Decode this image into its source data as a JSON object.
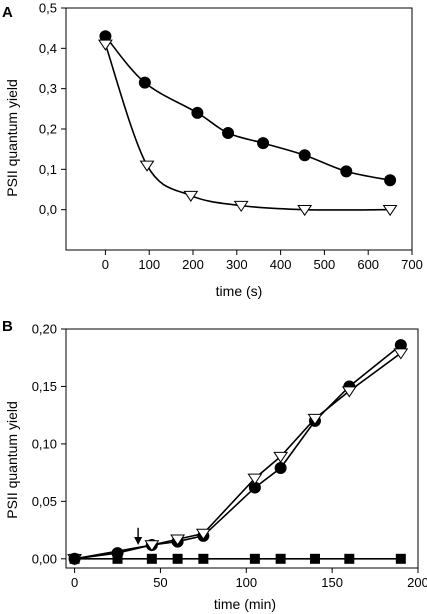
{
  "chart_data": [
    {
      "panel_label": "A",
      "type": "line",
      "xlabel": "time (s)",
      "ylabel": "PSII quantum yield",
      "xlim": [
        -90,
        700
      ],
      "ylim": [
        -0.1,
        0.5
      ],
      "xticks": [
        0,
        100,
        200,
        300,
        400,
        500,
        600,
        700
      ],
      "xtick_labels": [
        "0",
        "100",
        "200",
        "300",
        "400",
        "500",
        "600",
        "700"
      ],
      "yticks": [
        0.0,
        0.1,
        0.2,
        0.3,
        0.4,
        0.5
      ],
      "ytick_labels": [
        "0,0",
        "0,1",
        "0,2",
        "0,3",
        "0,4",
        "0,5"
      ],
      "grid": false,
      "series": [
        {
          "marker": "filled-circle",
          "smooth": true,
          "color": "#000000",
          "x": [
            0,
            90,
            210,
            280,
            360,
            455,
            550,
            650
          ],
          "y": [
            0.43,
            0.315,
            0.24,
            0.19,
            0.165,
            0.135,
            0.095,
            0.073
          ]
        },
        {
          "marker": "open-triangle-down",
          "smooth": true,
          "color": "#000000",
          "x": [
            0,
            95,
            195,
            310,
            455,
            650
          ],
          "y": [
            0.41,
            0.11,
            0.035,
            0.01,
            0.0,
            0.0
          ]
        }
      ]
    },
    {
      "panel_label": "B",
      "type": "line",
      "xlabel": "time (min)",
      "ylabel": "PSII quantum yield",
      "xlim": [
        -5,
        200
      ],
      "ylim": [
        -0.008,
        0.2
      ],
      "xticks": [
        0,
        50,
        100,
        150,
        200
      ],
      "xtick_labels": [
        "0",
        "50",
        "100",
        "150",
        "200"
      ],
      "yticks": [
        0.0,
        0.05,
        0.1,
        0.15,
        0.2
      ],
      "ytick_labels": [
        "0,00",
        "0,05",
        "0,10",
        "0,15",
        "0,20"
      ],
      "grid": false,
      "annotations": [
        {
          "type": "down-arrow",
          "x": 37,
          "y_from": 0.027,
          "y_to": 0.012
        }
      ],
      "series": [
        {
          "marker": "filled-circle",
          "color": "#000000",
          "x": [
            0,
            25,
            45,
            60,
            75,
            105,
            120,
            140,
            160,
            190
          ],
          "y": [
            0.0,
            0.005,
            0.012,
            0.015,
            0.02,
            0.062,
            0.079,
            0.12,
            0.15,
            0.186
          ]
        },
        {
          "marker": "open-triangle-down",
          "color": "#000000",
          "x": [
            0,
            45,
            60,
            75,
            105,
            120,
            140,
            160,
            190
          ],
          "y": [
            0.0,
            0.012,
            0.017,
            0.022,
            0.07,
            0.089,
            0.122,
            0.146,
            0.179
          ]
        },
        {
          "marker": "filled-square",
          "color": "#000000",
          "x": [
            0,
            25,
            45,
            60,
            75,
            105,
            120,
            140,
            160,
            190
          ],
          "y": [
            0.0,
            0.0,
            0.0,
            0.0,
            0.0,
            0.0,
            0.0,
            0.0,
            0.0,
            0.0
          ]
        }
      ]
    }
  ]
}
